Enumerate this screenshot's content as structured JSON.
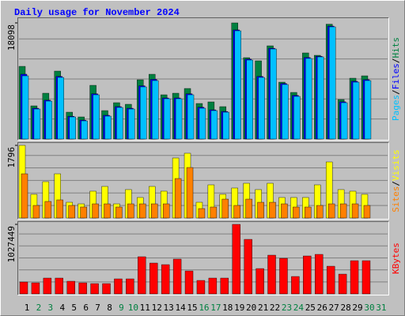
{
  "title": "Daily usage for November 2024",
  "separator": "/",
  "chart_data": [
    {
      "type": "bar",
      "ylim": [
        0,
        18098
      ],
      "yticks": [
        18098
      ],
      "series": [
        {
          "name": "Hits",
          "color": "#008040",
          "values": [
            11327,
            5171,
            7141,
            10588,
            4186,
            3447,
            8372,
            4432,
            5663,
            5417,
            9234,
            10095,
            6894,
            7141,
            7879,
            5540,
            5786,
            5048,
            18098,
            12681,
            12189,
            14527,
            8864,
            7264,
            13420,
            13050,
            17900,
            6156,
            9480,
            9849,
            null
          ]
        },
        {
          "name": "Files",
          "color": "#0000ff",
          "values": [
            10100,
            4800,
            6050,
            9750,
            3550,
            2950,
            7050,
            3700,
            5050,
            4800,
            8300,
            9300,
            6400,
            6400,
            7050,
            4950,
            4550,
            4300,
            17000,
            12450,
            9750,
            14150,
            8650,
            6800,
            12700,
            12900,
            17600,
            5800,
            9000,
            9250,
            null
          ]
        },
        {
          "name": "Pages",
          "color": "#00c0ff",
          "values": [
            9849,
            4678,
            5910,
            9603,
            3447,
            2832,
            6894,
            3570,
            4925,
            4678,
            8126,
            9111,
            6279,
            6279,
            6894,
            4802,
            4432,
            4186,
            16867,
            12312,
            9603,
            14035,
            8495,
            6648,
            12558,
            12804,
            17483,
            5663,
            8864,
            9111,
            null
          ]
        }
      ]
    },
    {
      "type": "bar",
      "ylim": [
        0,
        1796
      ],
      "yticks": [
        1796
      ],
      "series": [
        {
          "name": "Visits",
          "color": "#ffff00",
          "values": [
            1796,
            586,
            898,
            1093,
            390,
            351,
            664,
            781,
            351,
            703,
            508,
            781,
            664,
            1484,
            1601,
            390,
            820,
            586,
            742,
            859,
            703,
            859,
            508,
            508,
            508,
            820,
            1386,
            703,
            664,
            586,
            null
          ]
        },
        {
          "name": "Sites",
          "color": "#ff8000",
          "values": [
            1093,
            312,
            410,
            449,
            312,
            273,
            351,
            351,
            273,
            351,
            351,
            351,
            351,
            976,
            1249,
            234,
            273,
            468,
            312,
            468,
            390,
            390,
            351,
            273,
            273,
            312,
            351,
            351,
            351,
            312,
            null
          ]
        }
      ]
    },
    {
      "type": "bar",
      "ylim": [
        0,
        1027449
      ],
      "yticks": [
        1027449
      ],
      "categories": [
        "1",
        "2",
        "3",
        "4",
        "5",
        "6",
        "7",
        "8",
        "9",
        "10",
        "11",
        "12",
        "13",
        "14",
        "15",
        "16",
        "17",
        "18",
        "19",
        "20",
        "21",
        "22",
        "23",
        "24",
        "25",
        "26",
        "27",
        "28",
        "29",
        "30",
        "31"
      ],
      "category_colors": [
        "#000000",
        "#008040",
        "#008040",
        "#000000",
        "#000000",
        "#000000",
        "#000000",
        "#000000",
        "#008040",
        "#008040",
        "#000000",
        "#000000",
        "#000000",
        "#000000",
        "#000000",
        "#008040",
        "#008040",
        "#000000",
        "#000000",
        "#000000",
        "#000000",
        "#000000",
        "#008040",
        "#008040",
        "#000000",
        "#000000",
        "#000000",
        "#000000",
        "#000000",
        "#008040",
        "#008040"
      ],
      "series": [
        {
          "name": "KBytes",
          "color": "#ff0000",
          "values": [
            175136,
            163460,
            233520,
            233520,
            186818,
            163460,
            151788,
            151788,
            221844,
            221844,
            548771,
            455364,
            432012,
            513744,
            338604,
            198492,
            233520,
            233520,
            1027449,
            805644,
            373632,
            572124,
            525420,
            256872,
            560448,
            583800,
            408660,
            291900,
            490392,
            490392,
            null
          ]
        }
      ]
    }
  ]
}
